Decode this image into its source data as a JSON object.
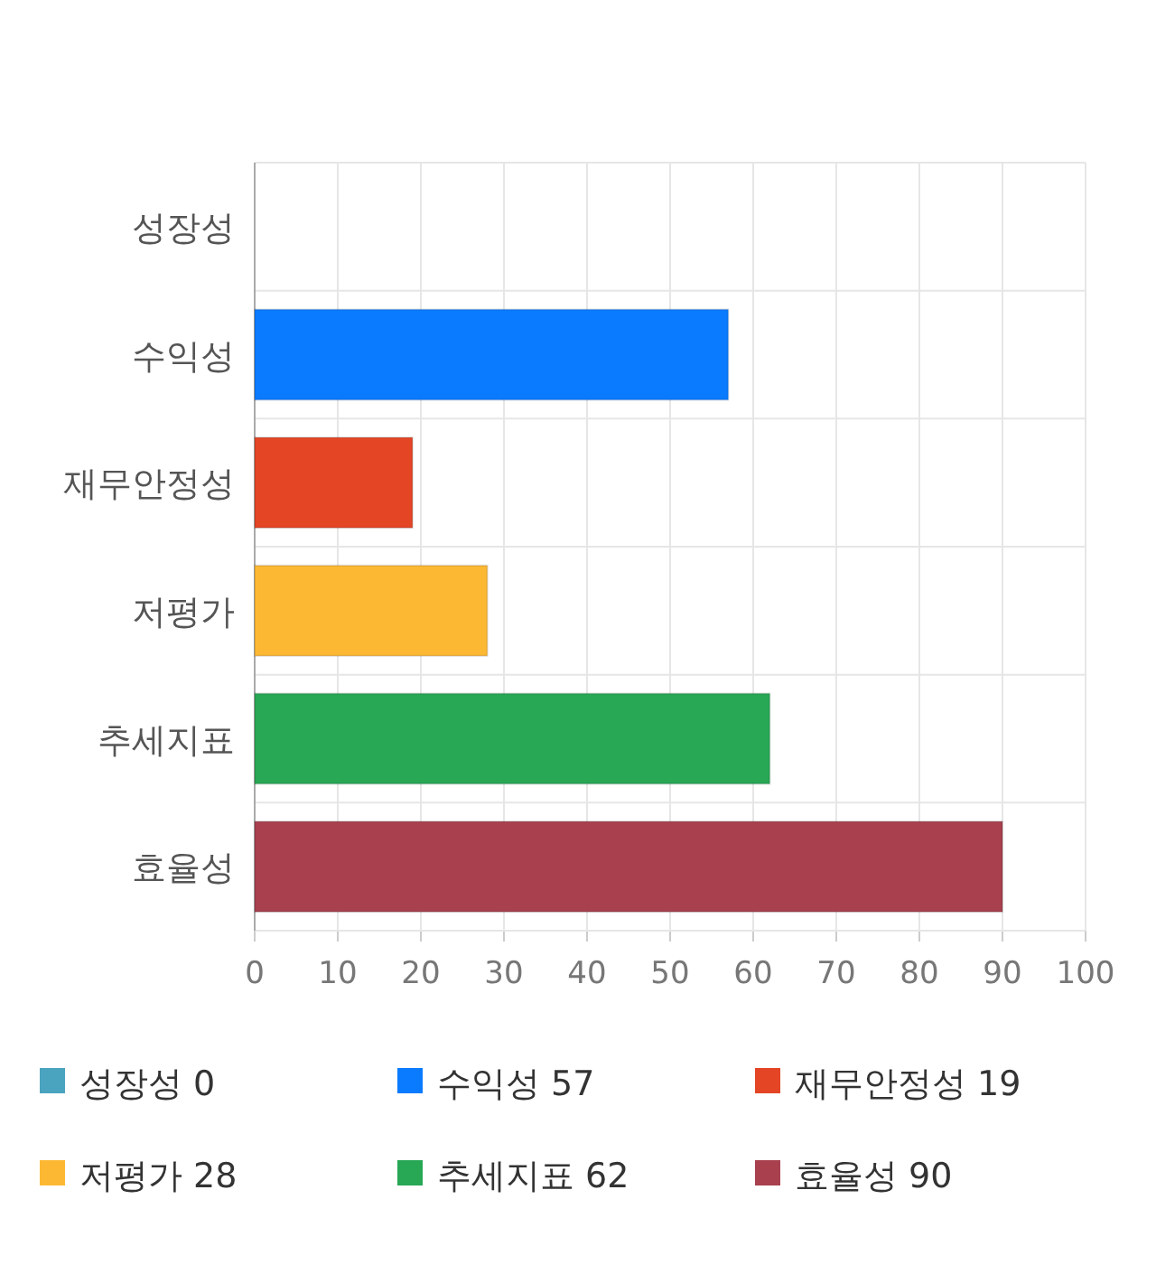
{
  "chart_data": {
    "type": "bar",
    "orientation": "horizontal",
    "categories": [
      "성장성",
      "수익성",
      "재무안정성",
      "저평가",
      "추세지표",
      "효율성"
    ],
    "values": [
      0,
      57,
      19,
      28,
      62,
      90
    ],
    "colors": [
      "#4aa3bf",
      "#0a7bff",
      "#e34525",
      "#fdb833",
      "#28a755",
      "#a8404e"
    ],
    "xlim": [
      0,
      100
    ],
    "xticks": [
      0,
      10,
      20,
      30,
      40,
      50,
      60,
      70,
      80,
      90,
      100
    ],
    "grid": true,
    "value_labels": [
      "0",
      "57",
      "19",
      "28",
      "62",
      "90"
    ]
  }
}
